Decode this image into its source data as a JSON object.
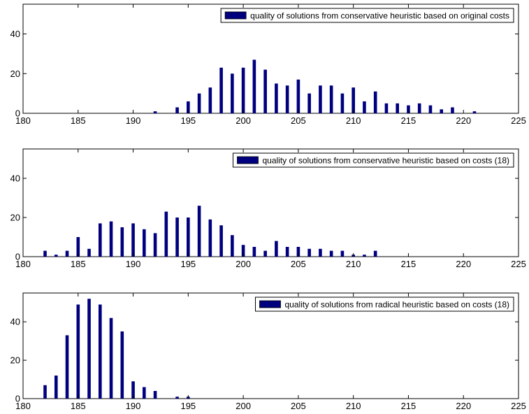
{
  "chart_data": [
    {
      "type": "bar",
      "series": [
        {
          "name": "quality of solutions from conservative heuristic based on original costs",
          "x": [
            192,
            194,
            195,
            196,
            197,
            198,
            199,
            200,
            201,
            202,
            203,
            204,
            205,
            206,
            207,
            208,
            209,
            210,
            211,
            212,
            213,
            214,
            215,
            216,
            217,
            218,
            219,
            221
          ],
          "values": [
            1,
            3,
            6,
            10,
            13,
            23,
            20,
            23,
            27,
            22,
            15,
            14,
            17,
            10,
            14,
            14,
            10,
            13,
            6,
            11,
            5,
            5,
            4,
            5,
            4,
            2,
            3,
            1
          ]
        }
      ],
      "xlim": [
        180,
        225
      ],
      "ylim": [
        0,
        55
      ],
      "xticks": [
        180,
        185,
        190,
        195,
        200,
        205,
        210,
        215,
        220,
        225
      ],
      "yticks": [
        0,
        20,
        40
      ],
      "legend_position": "top-right",
      "grid": false
    },
    {
      "type": "bar",
      "series": [
        {
          "name": "quality of solutions from conservative heuristic based on costs (18)",
          "x": [
            182,
            183,
            184,
            185,
            186,
            187,
            188,
            189,
            190,
            191,
            192,
            193,
            194,
            195,
            196,
            197,
            198,
            199,
            200,
            201,
            202,
            203,
            204,
            205,
            206,
            207,
            208,
            209,
            210,
            211,
            212
          ],
          "values": [
            3,
            1,
            3,
            10,
            4,
            17,
            18,
            15,
            17,
            14,
            12,
            23,
            20,
            20,
            26,
            19,
            16,
            11,
            6,
            5,
            3,
            8,
            5,
            5,
            4,
            4,
            3,
            3,
            1,
            1,
            3
          ]
        }
      ],
      "xlim": [
        180,
        225
      ],
      "ylim": [
        0,
        55
      ],
      "xticks": [
        180,
        185,
        190,
        195,
        200,
        205,
        210,
        215,
        220,
        225
      ],
      "yticks": [
        0,
        20,
        40
      ],
      "legend_position": "top-right",
      "grid": false
    },
    {
      "type": "bar",
      "series": [
        {
          "name": "quality of solutions from radical heuristic based on costs (18)",
          "x": [
            182,
            183,
            184,
            185,
            186,
            187,
            188,
            189,
            190,
            191,
            192,
            194,
            195
          ],
          "values": [
            7,
            12,
            33,
            49,
            52,
            49,
            42,
            35,
            9,
            6,
            4,
            1,
            1
          ]
        }
      ],
      "xlim": [
        180,
        225
      ],
      "ylim": [
        0,
        55
      ],
      "xticks": [
        180,
        185,
        190,
        195,
        200,
        205,
        210,
        215,
        220,
        225
      ],
      "yticks": [
        0,
        20,
        40
      ],
      "legend_position": "top-right",
      "grid": false
    }
  ],
  "colors": {
    "bar": "#00007f",
    "axis": "#000000",
    "background": "#ffffff"
  }
}
